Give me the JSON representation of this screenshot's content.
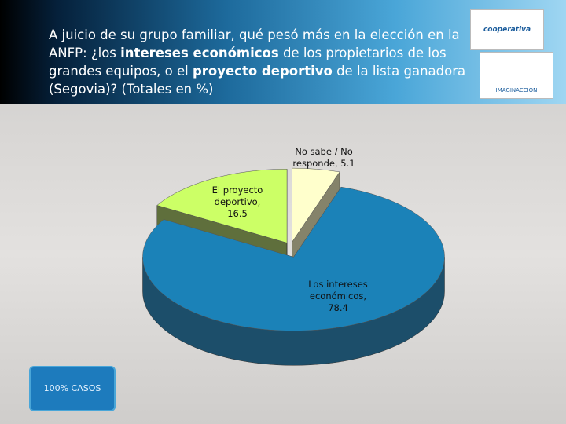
{
  "chart_data": {
    "type": "pie",
    "title_segments": [
      {
        "text": "A juicio de su grupo familiar, qué pesó más en la elección en la ANFP: ¿los ",
        "bold": false
      },
      {
        "text": "intereses económicos",
        "bold": true
      },
      {
        "text": " de los propietarios de los grandes equipos, o el ",
        "bold": false
      },
      {
        "text": "proyecto deportivo",
        "bold": true
      },
      {
        "text": " de la lista ganadora (Segovia)? (Totales en %)",
        "bold": false
      }
    ],
    "values": [
      5.1,
      78.4,
      16.5
    ],
    "value_labels": [
      "No sabe / No responde, 5.1",
      "Los intereses económicos, 78.4",
      "El proyecto deportivo, 16.5"
    ],
    "colors": [
      "#ffffcc",
      "#1b82b8",
      "#ccff66"
    ],
    "side_colors": [
      "#85836a",
      "#1c4e6a",
      "#5f6f3c"
    ],
    "note": "100% CASOS",
    "logos": [
      "cooperativa",
      "IMAGINACCION"
    ]
  }
}
